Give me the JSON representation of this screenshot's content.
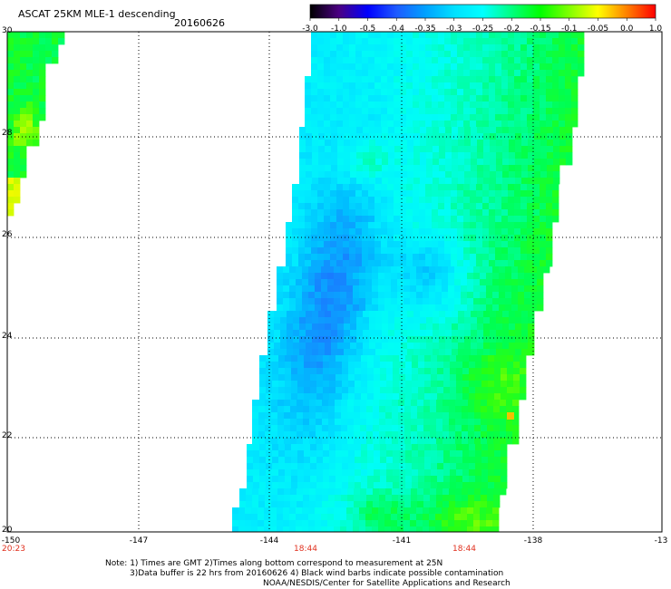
{
  "header": {
    "title": "ASCAT 25KM MLE-1 descending",
    "date": "20160626"
  },
  "colorbar": {
    "labels": [
      "-3.0",
      "-1.0",
      "-0.5",
      "-0.4",
      "-0.35",
      "-0.3",
      "-0.25",
      "-0.2",
      "-0.15",
      "-0.1",
      "-0.05",
      "0.0",
      "1.0"
    ],
    "colors": [
      "#000000",
      "#4b0082",
      "#0000ff",
      "#1e5aff",
      "#00a0ff",
      "#00e0ff",
      "#00ffff",
      "#00ff80",
      "#00ff00",
      "#80ff00",
      "#ffff00",
      "#ff8000",
      "#ff0000"
    ]
  },
  "axes": {
    "y_labels": [
      "30",
      "28",
      "26",
      "24",
      "22",
      "20"
    ],
    "x_labels": [
      "-150",
      "-147",
      "-144",
      "-141",
      "-138",
      "-13"
    ],
    "x_range": [
      -150,
      -135
    ],
    "y_range": [
      20,
      30
    ]
  },
  "time_labels": [
    {
      "text": "20:23",
      "lon": -150
    },
    {
      "text": "18:44",
      "lon": -144
    },
    {
      "text": "18:44",
      "lon": -141
    }
  ],
  "notes": {
    "line1": "Note: 1) Times are GMT 2)Times along bottom correspond to measurement at 25N",
    "line2": "3)Data buffer is 22 hrs from 20160626 4) Black wind barbs indicate possible contamination",
    "line3": "NOAA/NESDIS/Center for Satellite Applications and Research"
  }
}
